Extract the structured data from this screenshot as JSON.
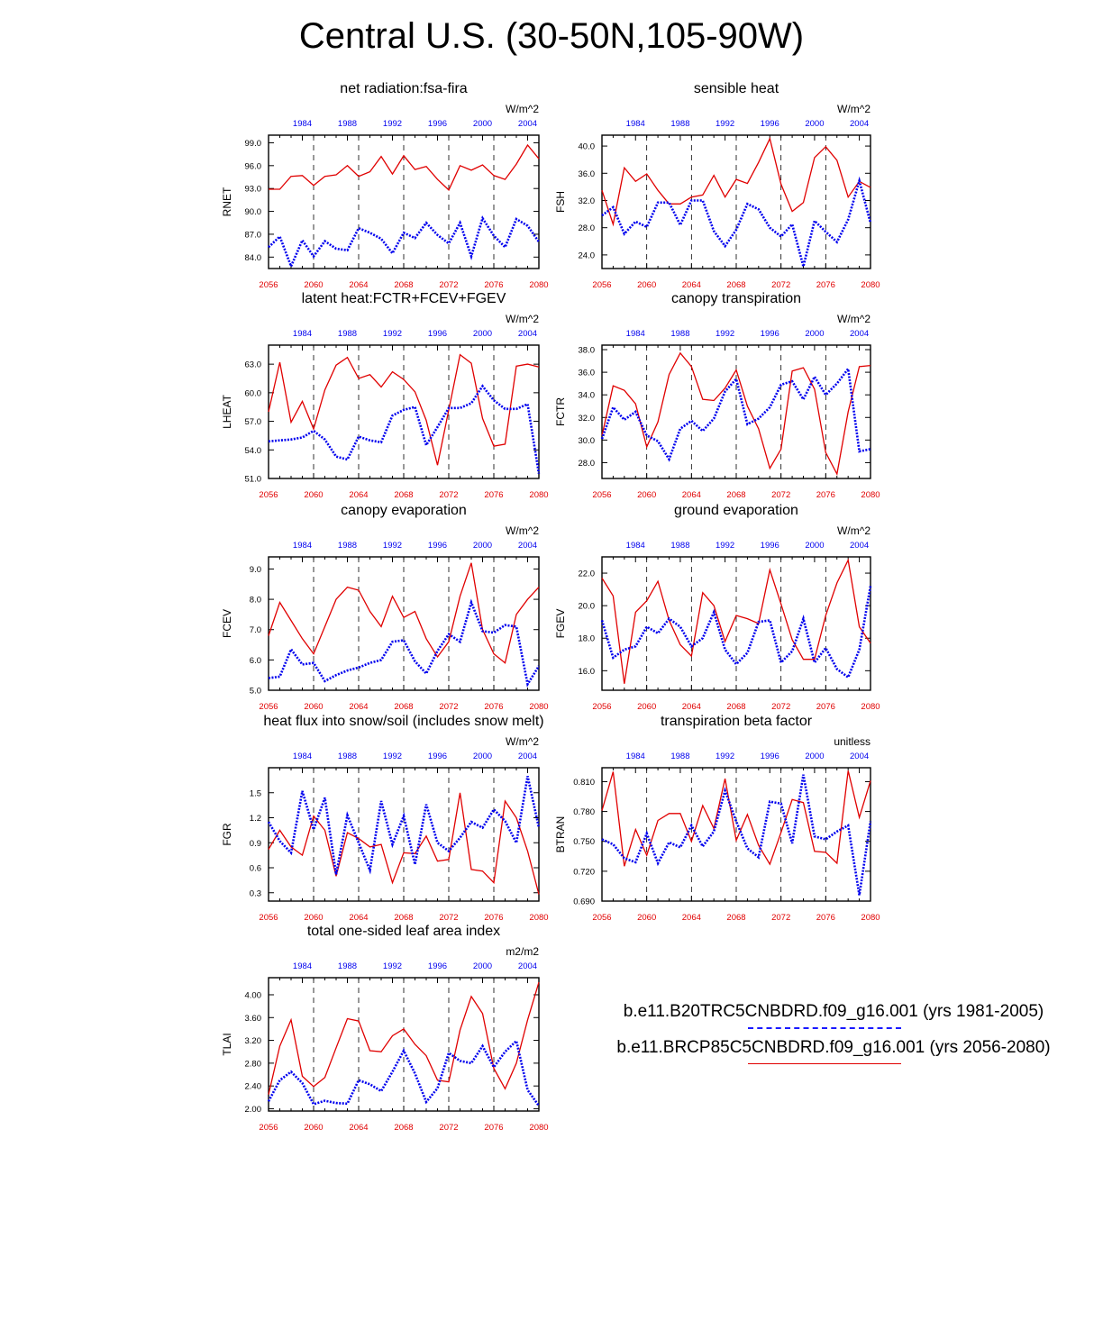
{
  "title": "Central U.S. (30-50N,105-90W)",
  "colors": {
    "hist": "#0000ee",
    "future": "#e00000",
    "axis": "#000000"
  },
  "axes": {
    "bottom_ticks": [
      "2056",
      "2060",
      "2064",
      "2068",
      "2072",
      "2076",
      "2080"
    ],
    "top_ticks": [
      "1984",
      "1988",
      "1992",
      "1996",
      "2000",
      "2004"
    ]
  },
  "legend": {
    "hist_label": "b.e11.B20TRC5CNBDRD.f09_g16.001 (yrs 1981-2005)",
    "future_label": "b.e11.BRCP85C5CNBDRD.f09_g16.001 (yrs 2056-2080)"
  },
  "chart_data": [
    {
      "type": "line",
      "title": "net radiation:fsa-fira",
      "ylabel": "RNET",
      "units": "W/m^2",
      "ylim": [
        82.5,
        100
      ],
      "yticks": [
        "84.0",
        "87.0",
        "90.0",
        "93.0",
        "96.0",
        "99.0"
      ],
      "xlim_future": [
        2056,
        2080
      ],
      "series": [
        {
          "values": [
            92.9,
            92.9,
            94.6,
            94.7,
            93.4,
            94.6,
            94.8,
            96.0,
            94.6,
            95.2,
            97.2,
            94.9,
            97.3,
            95.5,
            95.9,
            94.2,
            92.8,
            96.0,
            95.4,
            96.1,
            94.7,
            94.2,
            96.2,
            98.7,
            96.9
          ]
        },
        {
          "values": [
            85.3,
            86.7,
            82.8,
            86.2,
            84.1,
            86.1,
            85.1,
            84.9,
            87.8,
            87.2,
            86.4,
            84.5,
            87.2,
            86.5,
            88.5,
            86.9,
            85.8,
            88.5,
            84.1,
            89.1,
            86.8,
            85.3,
            89.0,
            88.1,
            86.0
          ]
        }
      ]
    },
    {
      "type": "line",
      "title": "sensible heat",
      "ylabel": "FSH",
      "units": "W/m^2",
      "ylim": [
        22,
        41.6
      ],
      "yticks": [
        "24.0",
        "28.0",
        "32.0",
        "36.0",
        "40.0"
      ],
      "xlim_future": [
        2056,
        2080
      ],
      "series": [
        {
          "values": [
            33.5,
            28.5,
            36.8,
            34.8,
            35.9,
            33.5,
            31.5,
            31.5,
            32.5,
            32.8,
            35.7,
            32.5,
            35.1,
            34.5,
            37.6,
            41.1,
            34.4,
            30.4,
            31.7,
            38.3,
            39.9,
            37.9,
            32.5,
            34.8,
            33.9
          ]
        },
        {
          "values": [
            29.8,
            31.0,
            27.1,
            28.9,
            28.1,
            31.7,
            31.7,
            28.4,
            32.0,
            32.0,
            27.5,
            25.3,
            27.7,
            31.5,
            30.7,
            28.0,
            26.7,
            28.5,
            22.3,
            29.0,
            27.4,
            25.9,
            29.2,
            34.9,
            28.7
          ]
        }
      ]
    },
    {
      "type": "line",
      "title": "latent heat:FCTR+FCEV+FGEV",
      "ylabel": "LHEAT",
      "units": "W/m^2",
      "ylim": [
        51,
        65
      ],
      "yticks": [
        "51.0",
        "54.0",
        "57.0",
        "60.0",
        "63.0"
      ],
      "xlim_future": [
        2056,
        2080
      ],
      "series": [
        {
          "values": [
            58.0,
            63.2,
            56.9,
            59.1,
            56.2,
            60.3,
            62.9,
            63.7,
            61.5,
            61.9,
            60.6,
            62.2,
            61.4,
            60.1,
            57.1,
            52.4,
            58.2,
            64.0,
            63.1,
            57.3,
            54.4,
            54.6,
            62.8,
            63.0,
            62.7
          ]
        },
        {
          "values": [
            54.9,
            55.0,
            55.1,
            55.3,
            56.0,
            55.1,
            53.3,
            53.0,
            55.4,
            55.0,
            54.8,
            57.6,
            58.2,
            58.5,
            54.5,
            56.4,
            58.4,
            58.4,
            58.9,
            60.7,
            59.2,
            58.3,
            58.3,
            58.8,
            51.5
          ]
        }
      ]
    },
    {
      "type": "line",
      "title": "canopy transpiration",
      "ylabel": "FCTR",
      "units": "W/m^2",
      "ylim": [
        26.6,
        38.4
      ],
      "yticks": [
        "28.0",
        "30.0",
        "32.0",
        "34.0",
        "36.0",
        "38.0"
      ],
      "xlim_future": [
        2056,
        2080
      ],
      "series": [
        {
          "values": [
            30.4,
            34.8,
            34.4,
            33.2,
            29.4,
            31.6,
            35.8,
            37.7,
            36.5,
            33.6,
            33.5,
            34.6,
            36.2,
            33.0,
            31.0,
            27.5,
            29.2,
            36.1,
            36.4,
            34.5,
            28.9,
            27.0,
            32.5,
            36.5,
            36.6
          ]
        },
        {
          "values": [
            30.1,
            32.9,
            31.8,
            32.5,
            30.4,
            29.9,
            28.3,
            31.0,
            31.7,
            30.8,
            31.9,
            34.3,
            35.4,
            31.4,
            31.9,
            32.9,
            34.9,
            35.2,
            33.6,
            35.6,
            34.0,
            35.0,
            36.3,
            29.0,
            29.2
          ]
        }
      ]
    },
    {
      "type": "line",
      "title": "canopy evaporation",
      "ylabel": "FCEV",
      "units": "W/m^2",
      "ylim": [
        5,
        9.4
      ],
      "yticks": [
        "5.0",
        "6.0",
        "7.0",
        "8.0",
        "9.0"
      ],
      "xlim_future": [
        2056,
        2080
      ],
      "series": [
        {
          "values": [
            6.8,
            7.9,
            7.3,
            6.7,
            6.2,
            7.1,
            8.0,
            8.4,
            8.3,
            7.6,
            7.1,
            8.1,
            7.4,
            7.6,
            6.7,
            6.1,
            6.6,
            8.1,
            9.2,
            7.0,
            6.2,
            5.9,
            7.5,
            8.0,
            8.4
          ]
        },
        {
          "values": [
            5.4,
            5.45,
            6.35,
            5.85,
            5.9,
            5.3,
            5.5,
            5.65,
            5.75,
            5.9,
            6.0,
            6.6,
            6.65,
            5.95,
            5.55,
            6.3,
            6.85,
            6.6,
            7.9,
            6.95,
            6.9,
            7.15,
            7.1,
            5.2,
            5.8
          ]
        }
      ]
    },
    {
      "type": "line",
      "title": "ground evaporation",
      "ylabel": "FGEV",
      "units": "W/m^2",
      "ylim": [
        14.8,
        23.0
      ],
      "yticks": [
        "16.0",
        "18.0",
        "20.0",
        "22.0"
      ],
      "xlim_future": [
        2056,
        2080
      ],
      "series": [
        {
          "values": [
            21.7,
            20.6,
            15.2,
            19.6,
            20.3,
            21.5,
            19.1,
            17.6,
            16.9,
            20.8,
            20.0,
            17.8,
            19.4,
            19.2,
            18.9,
            22.2,
            20.1,
            17.9,
            16.7,
            16.7,
            19.4,
            21.4,
            22.8,
            18.7,
            17.7
          ]
        },
        {
          "values": [
            19.1,
            16.8,
            17.3,
            17.5,
            18.7,
            18.3,
            19.2,
            18.7,
            17.5,
            18.0,
            19.6,
            17.3,
            16.4,
            17.1,
            19.0,
            19.1,
            16.5,
            17.2,
            19.2,
            16.5,
            17.4,
            16.1,
            15.6,
            17.3,
            21.2
          ]
        }
      ]
    },
    {
      "type": "line",
      "title": "heat flux into snow/soil (includes snow melt)",
      "ylabel": "FGR",
      "units": "W/m^2",
      "ylim": [
        0.2,
        1.8
      ],
      "yticks": [
        "0.3",
        "0.6",
        "0.9",
        "1.2",
        "1.5"
      ],
      "xlim_future": [
        2056,
        2080
      ],
      "series": [
        {
          "values": [
            0.82,
            1.05,
            0.85,
            0.75,
            1.22,
            1.05,
            0.5,
            1.02,
            0.95,
            0.85,
            0.88,
            0.42,
            0.78,
            0.77,
            0.98,
            0.68,
            0.7,
            1.5,
            0.58,
            0.56,
            0.42,
            1.4,
            1.2,
            0.8,
            0.28
          ]
        },
        {
          "values": [
            1.15,
            0.92,
            0.78,
            1.52,
            1.06,
            1.44,
            0.52,
            1.23,
            0.9,
            0.57,
            1.4,
            0.88,
            1.22,
            0.64,
            1.36,
            0.9,
            0.8,
            0.96,
            1.15,
            1.08,
            1.3,
            1.16,
            0.9,
            1.7,
            1.08
          ]
        }
      ]
    },
    {
      "type": "line",
      "title": "transpiration beta factor",
      "ylabel": "BTRAN",
      "units": "unitless",
      "ylim": [
        0.69,
        0.824
      ],
      "yticks": [
        "0.690",
        "0.720",
        "0.750",
        "0.780",
        "0.810"
      ],
      "xlim_future": [
        2056,
        2080
      ],
      "series": [
        {
          "values": [
            0.781,
            0.82,
            0.725,
            0.762,
            0.736,
            0.771,
            0.778,
            0.778,
            0.75,
            0.786,
            0.763,
            0.813,
            0.751,
            0.777,
            0.746,
            0.727,
            0.759,
            0.792,
            0.789,
            0.74,
            0.739,
            0.728,
            0.821,
            0.774,
            0.811
          ]
        },
        {
          "values": [
            0.752,
            0.747,
            0.733,
            0.729,
            0.758,
            0.728,
            0.749,
            0.744,
            0.766,
            0.745,
            0.76,
            0.801,
            0.77,
            0.743,
            0.734,
            0.79,
            0.788,
            0.748,
            0.817,
            0.755,
            0.752,
            0.76,
            0.766,
            0.696,
            0.77
          ]
        }
      ]
    },
    {
      "type": "line",
      "title": "total one-sided leaf area index",
      "ylabel": "TLAI",
      "units": "m2/m2",
      "ylim": [
        1.96,
        4.3
      ],
      "yticks": [
        "2.00",
        "2.40",
        "2.80",
        "3.20",
        "3.60",
        "4.00"
      ],
      "xlim_future": [
        2056,
        2080
      ],
      "series": [
        {
          "values": [
            2.25,
            3.1,
            3.56,
            2.57,
            2.39,
            2.55,
            3.07,
            3.58,
            3.54,
            3.02,
            3.0,
            3.28,
            3.4,
            3.13,
            2.93,
            2.5,
            2.47,
            3.38,
            3.97,
            3.67,
            2.71,
            2.35,
            2.8,
            3.56,
            4.22
          ]
        },
        {
          "values": [
            2.13,
            2.5,
            2.65,
            2.45,
            2.08,
            2.14,
            2.1,
            2.09,
            2.5,
            2.43,
            2.31,
            2.65,
            3.02,
            2.62,
            2.12,
            2.36,
            2.98,
            2.84,
            2.8,
            3.1,
            2.73,
            3.0,
            3.19,
            2.33,
            2.05
          ]
        }
      ]
    }
  ]
}
